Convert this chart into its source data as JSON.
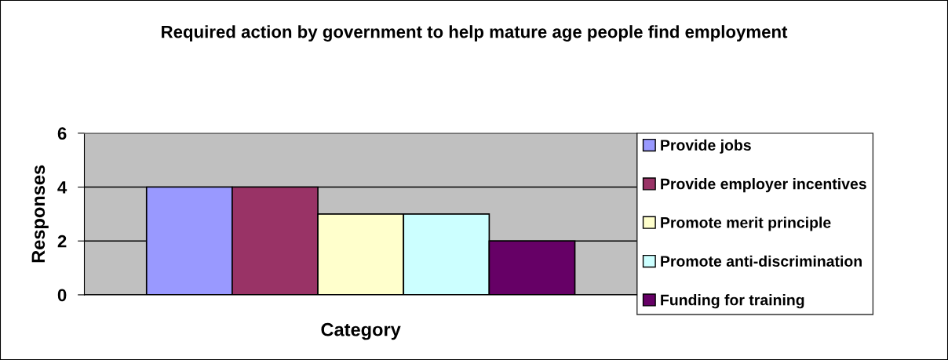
{
  "chart_data": {
    "type": "bar",
    "title": "Required action by government to help mature age people find employment",
    "xlabel": "Category",
    "ylabel": "Responses",
    "categories": [
      null
    ],
    "series": [
      {
        "name": "Provide jobs",
        "color": "#9999ff",
        "values": [
          4
        ]
      },
      {
        "name": "Provide employer incentives",
        "color": "#993366",
        "values": [
          4
        ]
      },
      {
        "name": "Promote merit principle",
        "color": "#ffffcc",
        "values": [
          3
        ]
      },
      {
        "name": "Promote anti-discrimination",
        "color": "#ccffff",
        "values": [
          3
        ]
      },
      {
        "name": "Funding for training",
        "color": "#660066",
        "values": [
          2
        ]
      }
    ],
    "ylim": [
      0,
      6
    ],
    "yticks": [
      0,
      2,
      4,
      6
    ],
    "grid": "y",
    "legend": "right"
  }
}
